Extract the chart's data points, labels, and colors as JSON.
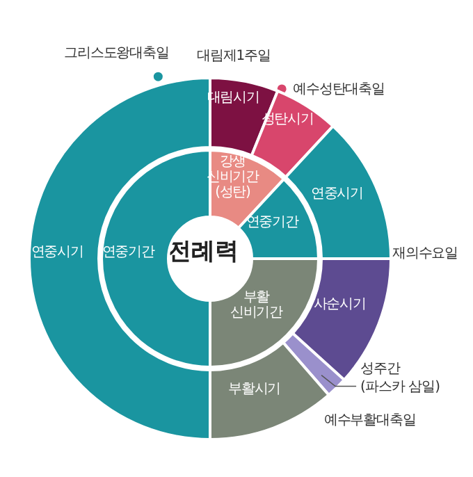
{
  "chart_data": [
    {
      "type": "donut",
      "title": "전례력",
      "categories": [
        "강생 신비기간 (성탄)",
        "연중기간",
        "부활 신비기간",
        "연중기간"
      ],
      "values": [
        11.9,
        13.1,
        25,
        50
      ],
      "colors": [
        "#e88a83",
        "#1a95a0",
        "#7b8677",
        "#1a95a0"
      ]
    },
    {
      "type": "donut",
      "categories": [
        "대림시기",
        "성탄시기",
        "연중시기",
        "사순시기",
        "성주간 (파스카 삼일)",
        "부활시기",
        "연중시기"
      ],
      "values": [
        6.1,
        5.8,
        13.1,
        11.7,
        1.9,
        11.4,
        50
      ],
      "colors": [
        "#7d1142",
        "#d8466c",
        "#1a95a0",
        "#5d4b91",
        "#9a90cc",
        "#7b8677",
        "#1a95a0"
      ],
      "annotations": [
        "그리스도왕대축일",
        "대림제1주일",
        "예수성탄대축일",
        "재의수요일",
        "예수부활대축일"
      ]
    }
  ]
}
